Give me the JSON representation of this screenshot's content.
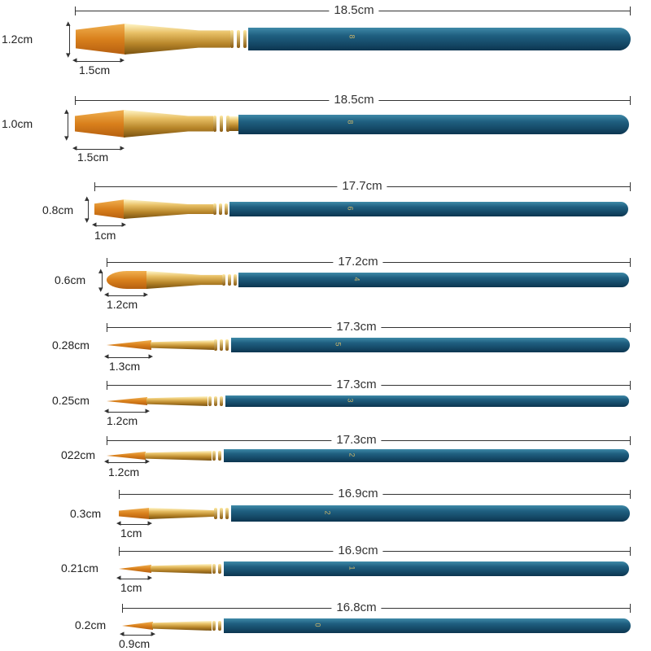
{
  "brushes": [
    {
      "length": "18.5cm",
      "width": "1.2cm",
      "tip": "1.5cm",
      "number": "8",
      "shape": "flat"
    },
    {
      "length": "18.5cm",
      "width": "1.0cm",
      "tip": "1.5cm",
      "number": "8",
      "shape": "flat"
    },
    {
      "length": "17.7cm",
      "width": "0.8cm",
      "tip": "1cm",
      "number": "6",
      "shape": "flat"
    },
    {
      "length": "17.2cm",
      "width": "0.6cm",
      "tip": "1.2cm",
      "number": "4",
      "shape": "oval"
    },
    {
      "length": "17.3cm",
      "width": "0.28cm",
      "tip": "1.3cm",
      "number": "5",
      "shape": "round"
    },
    {
      "length": "17.3cm",
      "width": "0.25cm",
      "tip": "1.2cm",
      "number": "3",
      "shape": "round"
    },
    {
      "length": "17.3cm",
      "width": "022cm",
      "tip": "1.2cm",
      "number": "2",
      "shape": "round"
    },
    {
      "length": "16.9cm",
      "width": "0.3cm",
      "tip": "1cm",
      "number": "2",
      "shape": "flat"
    },
    {
      "length": "16.9cm",
      "width": "0.21cm",
      "tip": "1cm",
      "number": "1",
      "shape": "round"
    },
    {
      "length": "16.8cm",
      "width": "0.2cm",
      "tip": "0.9cm",
      "number": "0",
      "shape": "round"
    }
  ],
  "colors": {
    "handle": "#1a5675",
    "ferrule": "#d4a548",
    "bristle": "#d9801c"
  }
}
